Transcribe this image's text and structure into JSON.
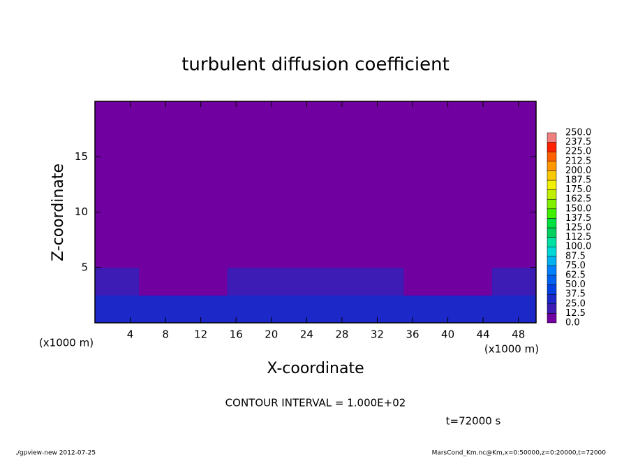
{
  "chart_data": {
    "type": "heatmap",
    "title": "turbulent diffusion coefficient",
    "x_label": "X-coordinate",
    "y_label": "Z-coordinate",
    "x_unit": "(x1000 m)",
    "y_unit": "(x1000 m)",
    "xlim": [
      0,
      50
    ],
    "ylim": [
      0,
      20
    ],
    "xticks": [
      4,
      8,
      12,
      16,
      20,
      24,
      28,
      32,
      36,
      40,
      44,
      48
    ],
    "yticks": [
      5,
      10,
      15
    ],
    "x": [
      2.5,
      7.5,
      12.5,
      17.5,
      22.5,
      27.5,
      32.5,
      37.5,
      42.5,
      47.5
    ],
    "y": [
      1.25,
      3.75,
      6.25,
      8.75,
      11.25,
      13.75,
      16.25,
      18.75
    ],
    "z": [
      [
        30,
        28,
        32,
        30,
        29,
        31,
        30,
        28,
        30,
        29
      ],
      [
        14,
        10,
        12,
        14,
        16,
        15,
        13,
        12,
        11,
        14
      ],
      [
        5,
        5,
        5,
        5,
        5,
        5,
        5,
        5,
        5,
        5
      ],
      [
        5,
        5,
        5,
        5,
        5,
        5,
        5,
        5,
        5,
        5
      ],
      [
        5,
        5,
        5,
        5,
        5,
        5,
        5,
        5,
        5,
        5
      ],
      [
        5,
        5,
        5,
        5,
        5,
        5,
        5,
        5,
        5,
        5
      ],
      [
        5,
        5,
        5,
        5,
        5,
        5,
        5,
        5,
        5,
        5
      ],
      [
        5,
        5,
        5,
        5,
        5,
        5,
        5,
        5,
        5,
        5
      ]
    ],
    "levels": [
      {
        "value": 0,
        "label": "0.0"
      },
      12.5,
      {
        "value": 25,
        "label": "25.0"
      },
      37.5,
      {
        "value": 50,
        "label": "50.0"
      },
      62.5,
      {
        "value": 75,
        "label": "75.0"
      },
      87.5,
      {
        "value": 100,
        "label": "100.0"
      },
      112.5,
      {
        "value": 125,
        "label": "125.0"
      },
      137.5,
      {
        "value": 150,
        "label": "150.0"
      },
      162.5,
      {
        "value": 175,
        "label": "175.0"
      },
      187.5,
      {
        "value": 200,
        "label": "200.0"
      },
      212.5,
      {
        "value": 225,
        "label": "225.0"
      },
      237.5,
      {
        "value": 250,
        "label": "250.0"
      }
    ],
    "colors": [
      "#7000a0",
      "#3c1cb4",
      "#1c28c8",
      "#0040e0",
      "#0060f0",
      "#0080ff",
      "#00b0f0",
      "#00d8d8",
      "#00e0a0",
      "#00d060",
      "#00e040",
      "#40f000",
      "#80f000",
      "#c0f000",
      "#f0f000",
      "#f8c800",
      "#ff9800",
      "#ff6000",
      "#ff2000",
      "#f08080"
    ],
    "annotations": [
      "CONTOUR INTERVAL = 1.000E+02",
      "t=72000 s"
    ],
    "footer_left": "./gpview-new  2012-07-25",
    "footer_right": "MarsCond_Km.nc@Km,x=0:50000,z=0:20000,t=72000"
  }
}
